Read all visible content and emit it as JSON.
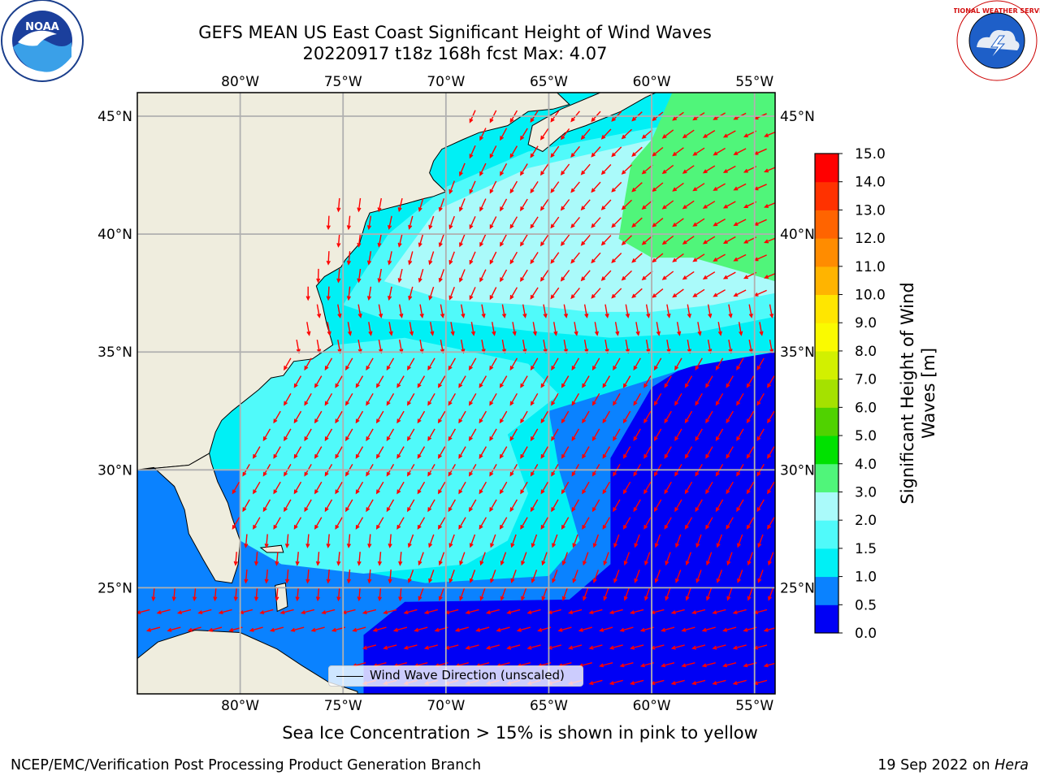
{
  "title": {
    "line1": "GEFS MEAN US East Coast Significant Height of Wind Waves",
    "line2": "20220917 t18z 168h fcst   Max: 4.07"
  },
  "logos": {
    "left": {
      "icon": "noaa-logo",
      "text": "NOAA"
    },
    "right": {
      "icon": "nws-logo",
      "text": "NATIONAL WEATHER SERVICE"
    }
  },
  "map": {
    "projection": "plate-carree",
    "lon_range": [
      -85,
      -54
    ],
    "lat_range": [
      20.5,
      46
    ],
    "lon_ticks": [
      {
        "value": -80,
        "label": "80°W"
      },
      {
        "value": -75,
        "label": "75°W"
      },
      {
        "value": -70,
        "label": "70°W"
      },
      {
        "value": -65,
        "label": "65°W"
      },
      {
        "value": -60,
        "label": "60°W"
      },
      {
        "value": -55,
        "label": "55°W"
      }
    ],
    "lat_ticks": [
      {
        "value": 45,
        "label": "45°N"
      },
      {
        "value": 40,
        "label": "40°N"
      },
      {
        "value": 35,
        "label": "35°N"
      },
      {
        "value": 30,
        "label": "30°N"
      },
      {
        "value": 25,
        "label": "25°N"
      }
    ],
    "gridlines": true,
    "land_color": "#efedde",
    "arrow_color": "#ff0000"
  },
  "colorbar": {
    "label": "Significant Height of Wind Waves [m]",
    "label_line1": "Significant Height of Wind",
    "label_line2": "Waves [m]",
    "ticks": [
      "0.0",
      "0.5",
      "1.0",
      "1.5",
      "2.0",
      "3.0",
      "4.0",
      "5.0",
      "6.0",
      "7.0",
      "8.0",
      "9.0",
      "10.0",
      "11.0",
      "12.0",
      "13.0",
      "14.0",
      "15.0"
    ],
    "colors": [
      "#0000f5",
      "#0a82ff",
      "#00f0f5",
      "#50fafa",
      "#aafafa",
      "#50f57a",
      "#00e100",
      "#50d200",
      "#a5e100",
      "#d2f000",
      "#fafa00",
      "#ffe600",
      "#ffb400",
      "#ff8c00",
      "#ff6400",
      "#ff3200",
      "#ff0000"
    ]
  },
  "legend": {
    "label": "Wind Wave Direction (unscaled)",
    "position": "bottom-center"
  },
  "bottom_note": "Sea Ice Concentration > 15% is shown in pink to yellow",
  "footer": {
    "left": "NCEP/EMC/Verification Post Processing Product Generation Branch",
    "right_prefix": "19 Sep 2022 on ",
    "right_host": "Hera"
  }
}
